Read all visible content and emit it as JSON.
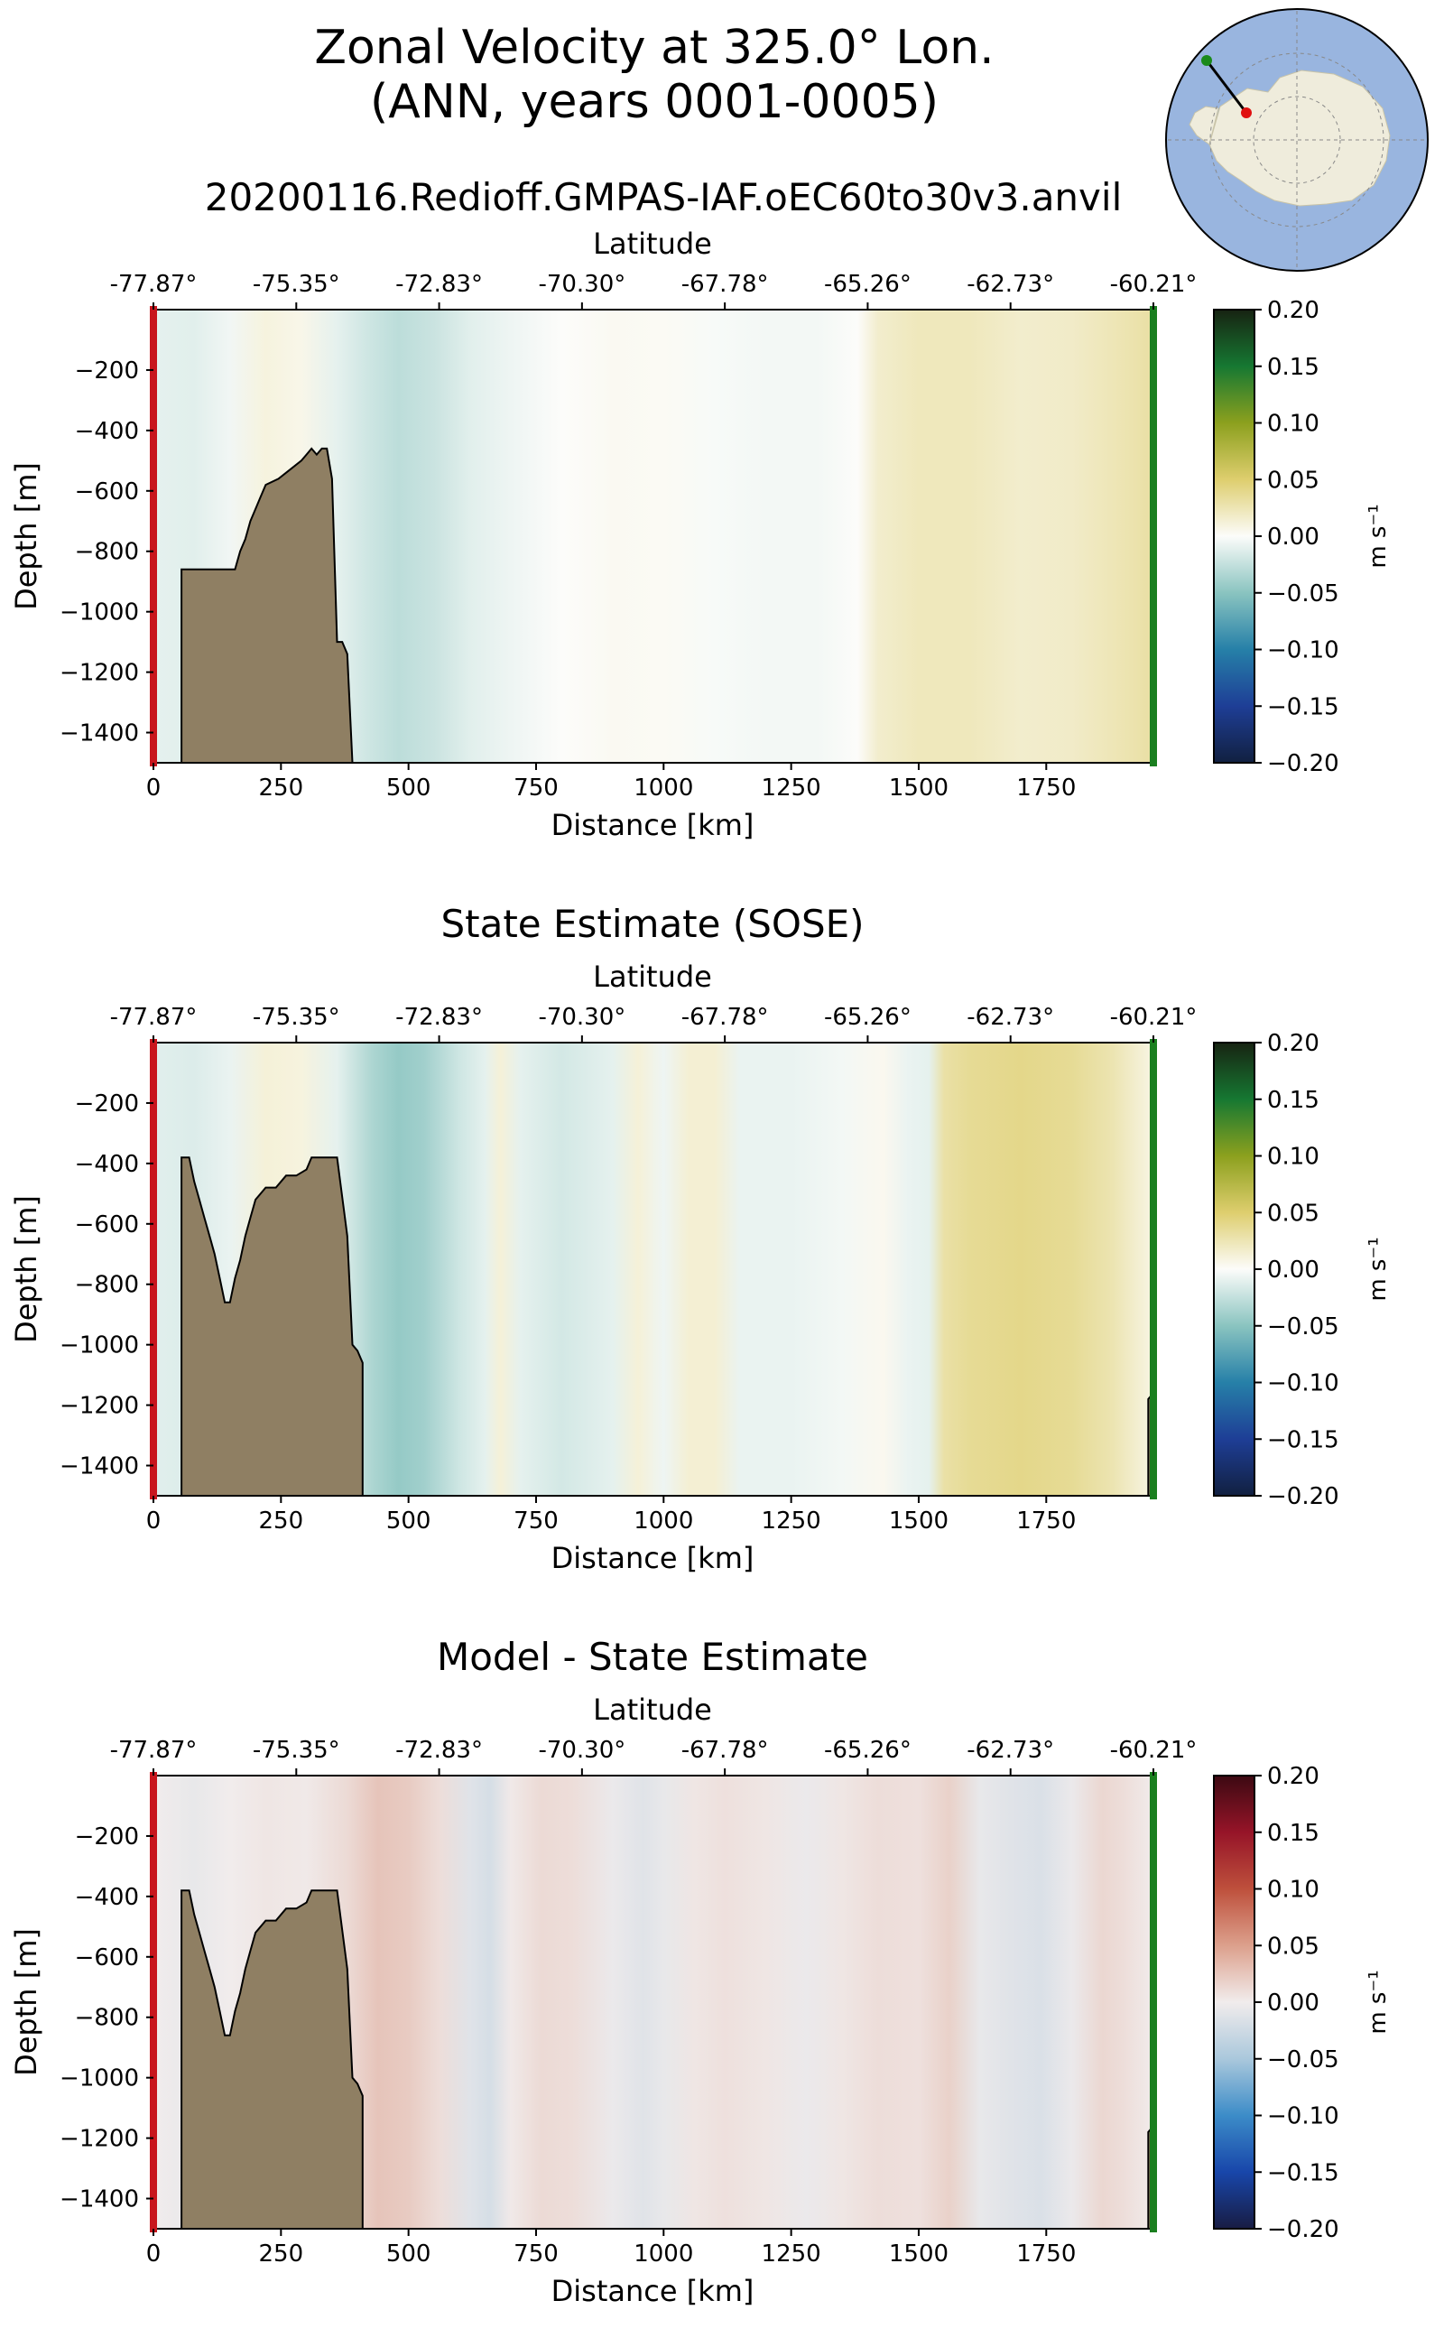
{
  "figure": {
    "title_line1": "Zonal Velocity at 325.0° Lon.",
    "title_line2": "(ANN, years 0001-0005)",
    "run_name": "20200116.Redioff.GMPAS-IAF.oEC60to30v3.anvil"
  },
  "chart_data": [
    {
      "type": "heatmap",
      "title": "",
      "xlabel": "Distance [km]",
      "ylabel": "Depth [m]",
      "top_axis_label": "Latitude",
      "xlim": [
        0,
        1960
      ],
      "ylim": [
        -1500,
        0
      ],
      "x_ticks": [
        0,
        250,
        500,
        750,
        1000,
        1250,
        1500,
        1750
      ],
      "y_ticks": [
        -200,
        -400,
        -600,
        -800,
        -1000,
        -1200,
        -1400
      ],
      "latitude_ticks": [
        "-77.87°",
        "-75.35°",
        "-72.83°",
        "-70.30°",
        "-67.78°",
        "-65.26°",
        "-62.73°",
        "-60.21°"
      ],
      "colormap": "delta (blue-white-yellow-green)",
      "colorbar": {
        "label": "m s⁻¹",
        "ticks": [
          "0.20",
          "0.15",
          "0.10",
          "0.05",
          "0.00",
          "−0.05",
          "−0.10",
          "−0.15",
          "−0.20"
        ],
        "range": [
          -0.2,
          0.2
        ]
      },
      "section_start_marker": "red",
      "section_end_marker": "green",
      "column_means": {
        "x_km": [
          0,
          80,
          150,
          220,
          290,
          360,
          420,
          480,
          550,
          620,
          700,
          800,
          900,
          1000,
          1100,
          1200,
          1300,
          1380,
          1420,
          1500,
          1600,
          1700,
          1800,
          1880,
          1950
        ],
        "velocity_m_s": [
          -0.01,
          -0.012,
          -0.005,
          0.01,
          0.006,
          -0.01,
          -0.02,
          -0.028,
          -0.022,
          -0.012,
          -0.006,
          0.0,
          0.003,
          0.002,
          -0.002,
          -0.004,
          -0.004,
          0.0,
          0.016,
          0.022,
          0.022,
          0.016,
          0.018,
          0.024,
          0.03
        ]
      },
      "bathymetry": {
        "x_km": [
          0,
          55,
          55,
          150,
          160,
          170,
          180,
          190,
          200,
          210,
          220,
          245,
          260,
          290,
          300,
          310,
          320,
          330,
          340,
          350,
          360,
          370,
          380,
          390
        ],
        "depth_m": [
          -1500,
          -1500,
          -860,
          -860,
          -860,
          -800,
          -760,
          -700,
          -660,
          -620,
          -580,
          -560,
          -540,
          -500,
          -480,
          -460,
          -480,
          -460,
          -460,
          -560,
          -1100,
          -1100,
          -1140,
          -1500
        ]
      }
    },
    {
      "type": "heatmap",
      "title": "State Estimate (SOSE)",
      "xlabel": "Distance [km]",
      "ylabel": "Depth [m]",
      "top_axis_label": "Latitude",
      "xlim": [
        0,
        1960
      ],
      "ylim": [
        -1500,
        0
      ],
      "x_ticks": [
        0,
        250,
        500,
        750,
        1000,
        1250,
        1500,
        1750
      ],
      "y_ticks": [
        -200,
        -400,
        -600,
        -800,
        -1000,
        -1200,
        -1400
      ],
      "latitude_ticks": [
        "-77.87°",
        "-75.35°",
        "-72.83°",
        "-70.30°",
        "-67.78°",
        "-65.26°",
        "-62.73°",
        "-60.21°"
      ],
      "colormap": "delta (blue-white-yellow-green)",
      "colorbar": {
        "label": "m s⁻¹",
        "ticks": [
          "0.20",
          "0.15",
          "0.10",
          "0.05",
          "0.00",
          "−0.05",
          "−0.10",
          "−0.15",
          "−0.20"
        ],
        "range": [
          -0.2,
          0.2
        ]
      },
      "section_start_marker": "red",
      "section_end_marker": "green",
      "column_means": {
        "x_km": [
          0,
          80,
          150,
          220,
          290,
          360,
          430,
          480,
          530,
          600,
          650,
          680,
          720,
          800,
          900,
          950,
          1000,
          1050,
          1100,
          1150,
          1250,
          1350,
          1430,
          1480,
          1520,
          1550,
          1600,
          1700,
          1800,
          1880,
          1950
        ],
        "velocity_m_s": [
          -0.012,
          -0.014,
          -0.008,
          0.012,
          0.01,
          -0.01,
          -0.035,
          -0.045,
          -0.04,
          -0.02,
          -0.01,
          0.012,
          -0.01,
          -0.018,
          -0.01,
          0.012,
          -0.006,
          0.014,
          0.014,
          -0.008,
          -0.008,
          -0.004,
          0.004,
          -0.008,
          -0.01,
          0.03,
          0.036,
          0.04,
          0.036,
          0.026,
          0.01
        ]
      },
      "bathymetry": {
        "x_km": [
          0,
          55,
          55,
          70,
          80,
          90,
          100,
          110,
          120,
          130,
          140,
          150,
          160,
          170,
          180,
          190,
          200,
          220,
          240,
          260,
          280,
          300,
          310,
          320,
          340,
          360,
          380,
          390,
          400,
          410,
          410
        ],
        "depth_m": [
          -1500,
          -1500,
          -380,
          -380,
          -460,
          -520,
          -580,
          -640,
          -700,
          -780,
          -860,
          -860,
          -780,
          -720,
          -640,
          -580,
          -520,
          -480,
          -480,
          -440,
          -440,
          -420,
          -380,
          -380,
          -380,
          -380,
          -640,
          -1000,
          -1020,
          -1060,
          -1500
        ]
      },
      "bathymetry_right": {
        "x_km": [
          1950,
          1950,
          1960,
          1960
        ],
        "depth_m": [
          -1500,
          -1180,
          -1160,
          -1500
        ]
      }
    },
    {
      "type": "heatmap",
      "title": "Model - State Estimate",
      "xlabel": "Distance [km]",
      "ylabel": "Depth [m]",
      "top_axis_label": "Latitude",
      "xlim": [
        0,
        1960
      ],
      "ylim": [
        -1500,
        0
      ],
      "x_ticks": [
        0,
        250,
        500,
        750,
        1000,
        1250,
        1500,
        1750
      ],
      "y_ticks": [
        -200,
        -400,
        -600,
        -800,
        -1000,
        -1200,
        -1400
      ],
      "latitude_ticks": [
        "-77.87°",
        "-75.35°",
        "-72.83°",
        "-70.30°",
        "-67.78°",
        "-65.26°",
        "-62.73°",
        "-60.21°"
      ],
      "colormap": "balance (blue-white-red)",
      "colorbar": {
        "label": "m s⁻¹",
        "ticks": [
          "0.20",
          "0.15",
          "0.10",
          "0.05",
          "0.00",
          "−0.05",
          "−0.10",
          "−0.15",
          "−0.20"
        ],
        "range": [
          -0.2,
          0.2
        ]
      },
      "section_start_marker": "red",
      "section_end_marker": "green",
      "column_means": {
        "x_km": [
          0,
          80,
          150,
          220,
          300,
          380,
          440,
          500,
          560,
          620,
          660,
          700,
          760,
          820,
          900,
          960,
          1000,
          1060,
          1120,
          1200,
          1280,
          1350,
          1420,
          1500,
          1560,
          1620,
          1680,
          1740,
          1800,
          1860,
          1900,
          1950
        ],
        "velocity_m_s": [
          0.0,
          -0.006,
          0.0,
          0.004,
          0.002,
          0.012,
          0.026,
          0.022,
          0.01,
          -0.012,
          -0.02,
          0.002,
          0.012,
          0.01,
          -0.004,
          -0.012,
          -0.006,
          0.004,
          0.008,
          0.004,
          -0.004,
          0.004,
          0.01,
          0.008,
          0.018,
          -0.006,
          -0.012,
          -0.016,
          -0.004,
          0.014,
          0.01,
          0.002
        ]
      },
      "bathymetry": {
        "x_km": [
          0,
          55,
          55,
          70,
          80,
          90,
          100,
          110,
          120,
          130,
          140,
          150,
          160,
          170,
          180,
          190,
          200,
          220,
          240,
          260,
          280,
          300,
          310,
          320,
          340,
          360,
          380,
          390,
          400,
          410,
          410
        ],
        "depth_m": [
          -1500,
          -1500,
          -380,
          -380,
          -460,
          -520,
          -580,
          -640,
          -700,
          -780,
          -860,
          -860,
          -780,
          -720,
          -640,
          -580,
          -520,
          -480,
          -480,
          -440,
          -440,
          -420,
          -380,
          -380,
          -380,
          -380,
          -640,
          -1000,
          -1020,
          -1060,
          -1500
        ]
      },
      "bathymetry_right": {
        "x_km": [
          1950,
          1950,
          1960,
          1960
        ],
        "depth_m": [
          -1500,
          -1180,
          -1160,
          -1500
        ]
      }
    }
  ]
}
